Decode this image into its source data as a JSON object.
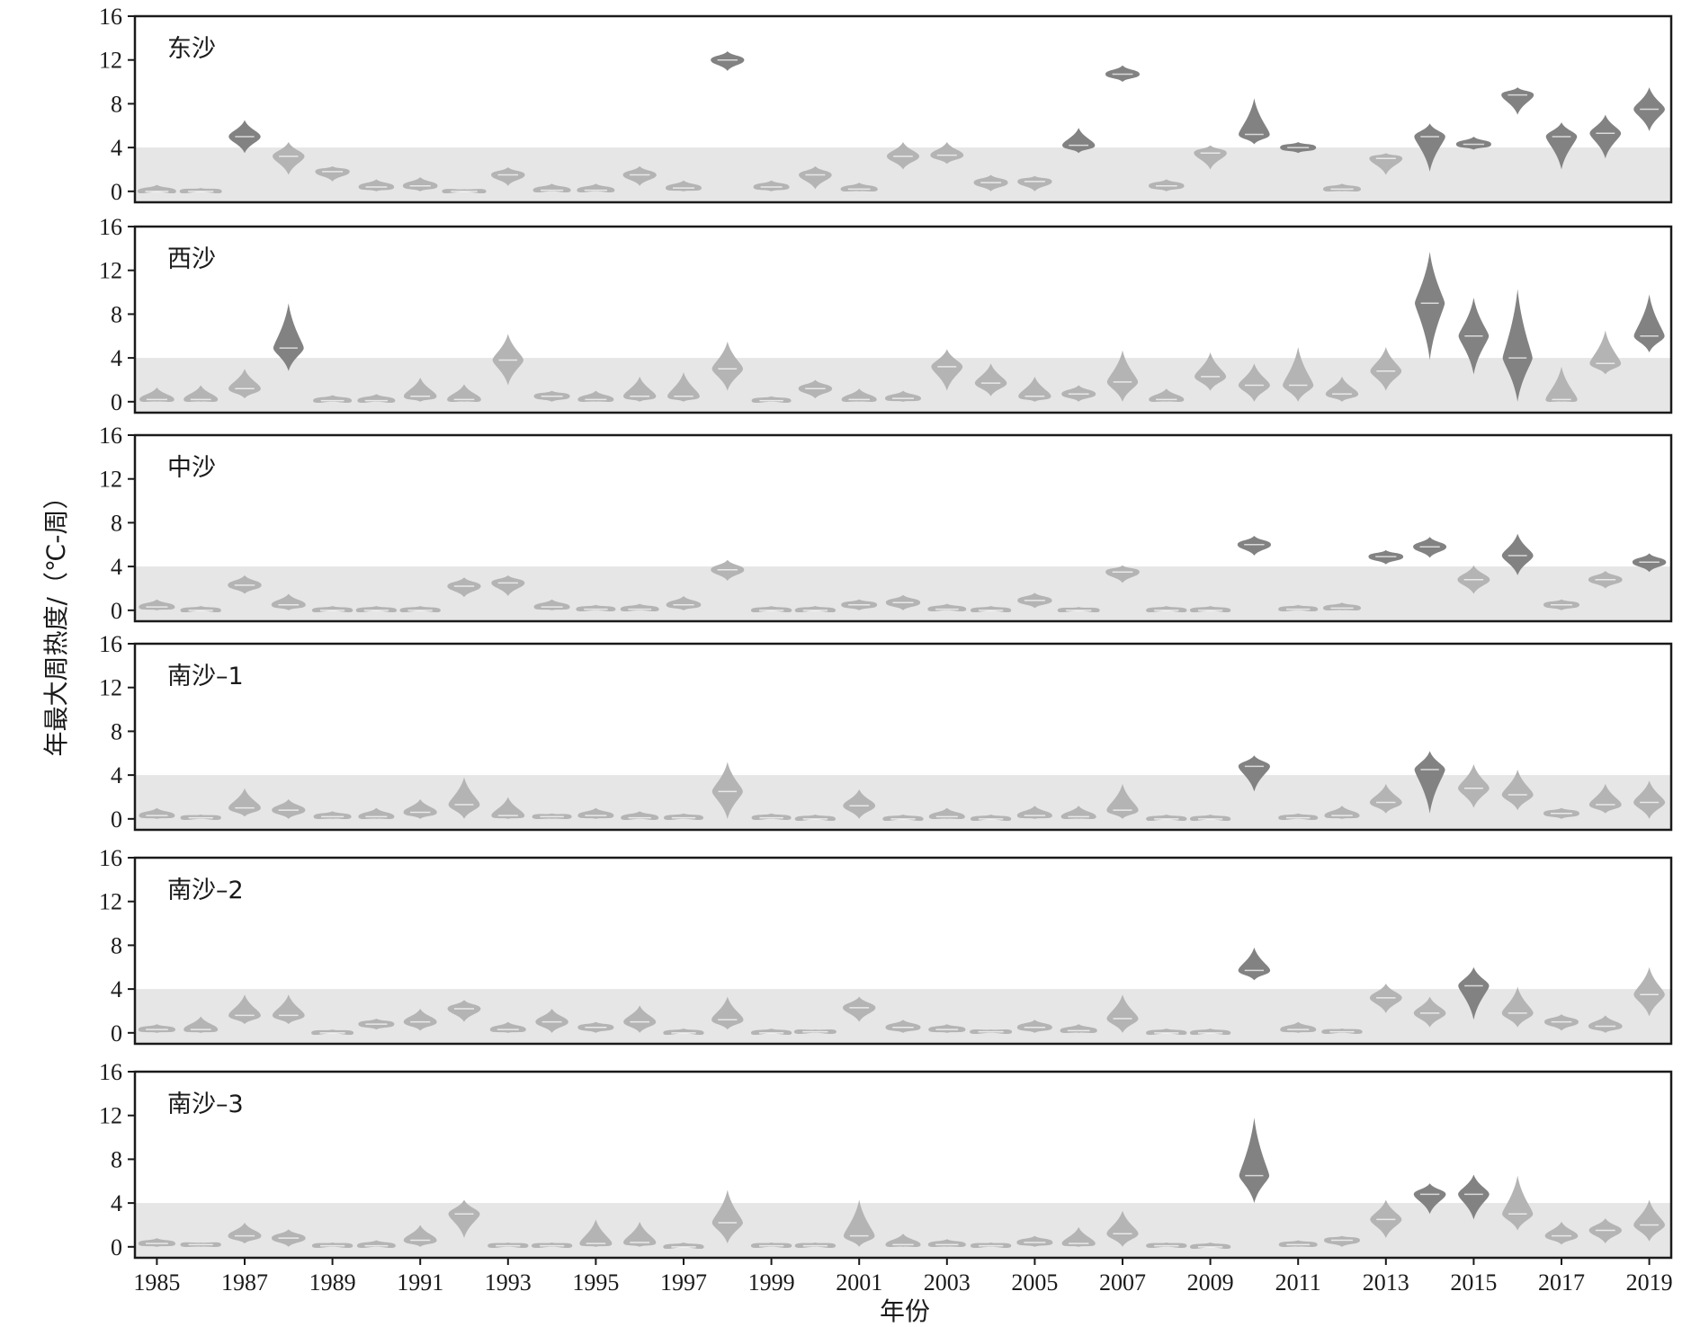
{
  "chart_data": {
    "type": "violin",
    "xlabel": "年份",
    "ylabel": "年最大周热度/（℃-周）",
    "x_tick_labels": [
      "1985",
      "1987",
      "1989",
      "1991",
      "1993",
      "1995",
      "1997",
      "1999",
      "2001",
      "2003",
      "2005",
      "2007",
      "2009",
      "2011",
      "2013",
      "2015",
      "2017",
      "2019"
    ],
    "y_ticks": [
      0,
      4,
      8,
      12,
      16
    ],
    "ylim": [
      -1,
      16
    ],
    "threshold_band": [
      -1,
      4
    ],
    "colors": {
      "above_threshold": "#828282",
      "below_threshold": "#b4b4b4",
      "band": "#e6e6e6",
      "frame": "#1a1a1a"
    },
    "years": [
      1985,
      1986,
      1987,
      1988,
      1989,
      1990,
      1991,
      1992,
      1993,
      1994,
      1995,
      1996,
      1997,
      1998,
      1999,
      2000,
      2001,
      2002,
      2003,
      2004,
      2005,
      2006,
      2007,
      2008,
      2009,
      2010,
      2011,
      2012,
      2013,
      2014,
      2015,
      2016,
      2017,
      2018,
      2019
    ],
    "panels": [
      {
        "name": "东沙",
        "medians": [
          0,
          0,
          5,
          3.2,
          1.8,
          0.4,
          0.5,
          0,
          1.5,
          0.1,
          0.1,
          1.5,
          0.3,
          12,
          0.4,
          1.5,
          0.2,
          3.2,
          3.3,
          0.8,
          0.9,
          4.2,
          10.7,
          0.5,
          3.5,
          5.2,
          4,
          0.2,
          3,
          5,
          4.3,
          8.8,
          5,
          5.3,
          7.5
        ],
        "mins": [
          0,
          0,
          3.5,
          1.5,
          0.9,
          0,
          0,
          0,
          0.5,
          0,
          0,
          0.5,
          0,
          11,
          0,
          0.2,
          0,
          2,
          2.5,
          0,
          0,
          3.5,
          10,
          0,
          2,
          4.3,
          3.5,
          0,
          1.5,
          1.8,
          3.8,
          7,
          2,
          3,
          5.5
        ],
        "maxs": [
          0.6,
          0.3,
          6.5,
          4.5,
          2.3,
          1.1,
          1.3,
          0.2,
          2.2,
          0.7,
          0.7,
          2.3,
          1,
          12.8,
          1,
          2.3,
          0.8,
          4.5,
          4.5,
          1.5,
          1.4,
          5.8,
          11.5,
          1.1,
          4.2,
          8.5,
          4.5,
          0.7,
          3.5,
          6.2,
          5,
          9.5,
          6.3,
          7,
          9.5
        ]
      },
      {
        "name": "西沙",
        "medians": [
          0.2,
          0.2,
          1.2,
          4.9,
          0.1,
          0.1,
          0.5,
          0.2,
          3.8,
          0.5,
          0.2,
          0.5,
          0.5,
          3,
          0.1,
          1.2,
          0.2,
          0.3,
          3.2,
          1.7,
          0.5,
          0.7,
          1.8,
          0.2,
          2.3,
          1.5,
          1.5,
          0.7,
          2.8,
          9,
          6,
          4,
          0.2,
          3.5,
          6
        ],
        "mins": [
          0,
          0,
          0.3,
          2.8,
          0,
          0,
          0,
          0,
          1.5,
          0,
          0,
          0,
          0,
          1,
          0,
          0.3,
          0,
          0,
          1,
          0.5,
          0,
          0,
          0,
          0,
          1,
          0,
          0,
          0,
          1,
          3.8,
          2.5,
          0,
          0,
          2.5,
          4.5
        ],
        "maxs": [
          1.3,
          1.5,
          3,
          9,
          0.6,
          0.7,
          2.2,
          1.6,
          6.2,
          1,
          1,
          2.3,
          2.7,
          5.5,
          0.5,
          2,
          1.2,
          1,
          4.8,
          3.5,
          2.3,
          1.5,
          4.7,
          1.2,
          4.5,
          3.5,
          5,
          2.3,
          5,
          13.7,
          9.5,
          10.3,
          3.2,
          6.5,
          9.8
        ]
      },
      {
        "name": "中沙",
        "medians": [
          0.3,
          0,
          2.3,
          0.5,
          0,
          0,
          0,
          2.2,
          2.5,
          0.3,
          0.1,
          0.1,
          0.5,
          3.7,
          0,
          0,
          0.5,
          0.7,
          0.1,
          0,
          0.9,
          0,
          3.5,
          0,
          0,
          6,
          0.1,
          0.2,
          4.9,
          5.8,
          2.8,
          5,
          0.5,
          2.8,
          4.4
        ],
        "mins": [
          0,
          0,
          1.5,
          0,
          0,
          0,
          0,
          1.2,
          1.3,
          0,
          0,
          0,
          0,
          2.7,
          0,
          0,
          0,
          0,
          0,
          0,
          0.2,
          0,
          2.5,
          0,
          0,
          5,
          0,
          0,
          4.2,
          4.8,
          1.5,
          3.2,
          0,
          2,
          3.5
        ],
        "maxs": [
          1,
          0.4,
          3.2,
          1.5,
          0.4,
          0.4,
          0.4,
          3,
          3.2,
          1,
          0.5,
          0.6,
          1.3,
          4.6,
          0.4,
          0.4,
          1,
          1.4,
          0.6,
          0.4,
          1.6,
          0.3,
          4.1,
          0.4,
          0.4,
          6.8,
          0.5,
          0.7,
          5.5,
          6.7,
          4.1,
          7,
          1,
          3.6,
          5.2
        ]
      },
      {
        "name": "南沙–1",
        "medians": [
          0.3,
          0.1,
          1,
          0.8,
          0.2,
          0.2,
          0.6,
          1.3,
          0.3,
          0.2,
          0.3,
          0.1,
          0.1,
          2.5,
          0.1,
          0,
          1.2,
          0,
          0.2,
          0,
          0.3,
          0.2,
          0.8,
          0,
          0,
          4.8,
          0.1,
          0.3,
          1.5,
          4.5,
          2.8,
          2.2,
          0.5,
          1.3,
          1.5
        ],
        "mins": [
          0,
          0,
          0.2,
          0,
          0,
          0,
          0,
          0,
          0,
          0,
          0,
          0,
          0,
          0,
          0,
          0,
          0,
          0,
          0,
          0,
          0,
          0,
          0,
          0,
          0,
          2.5,
          0,
          0,
          0.5,
          0.5,
          1,
          0.8,
          0,
          0.5,
          0
        ],
        "maxs": [
          1,
          0.4,
          2.8,
          1.8,
          0.7,
          1,
          1.8,
          3.8,
          2,
          0.5,
          1,
          0.7,
          0.5,
          5.2,
          0.5,
          0.4,
          2.7,
          0.4,
          1,
          0.4,
          1.2,
          1.2,
          3.2,
          0.4,
          0.4,
          5.8,
          0.5,
          1.2,
          3.2,
          6.2,
          5,
          4.5,
          1,
          3.2,
          3.5
        ]
      },
      {
        "name": "南沙–2",
        "medians": [
          0.3,
          0.3,
          1.6,
          1.6,
          0,
          0.8,
          1,
          2.2,
          0.3,
          1,
          0.5,
          1,
          0,
          1.2,
          0,
          0.1,
          2.3,
          0.5,
          0.3,
          0.1,
          0.5,
          0.2,
          1.3,
          0,
          0,
          5.7,
          0.3,
          0.1,
          3.2,
          1.8,
          4.3,
          1.8,
          1,
          0.6,
          3.5
        ],
        "mins": [
          0,
          0,
          0.8,
          0.8,
          0,
          0.3,
          0.2,
          1,
          0,
          0,
          0,
          0,
          0,
          0.3,
          0,
          0,
          1,
          0,
          0,
          0,
          0,
          0,
          0,
          0,
          0,
          4.8,
          0,
          0,
          1.8,
          0.5,
          1.2,
          0.5,
          0.2,
          0,
          1.5
        ],
        "maxs": [
          0.8,
          1.5,
          3.5,
          3.5,
          0.3,
          1.3,
          2.2,
          3,
          1,
          2.2,
          1,
          2.5,
          0.4,
          3.3,
          0.4,
          0.3,
          3.3,
          1.2,
          0.8,
          0.3,
          1.2,
          0.8,
          3.5,
          0.4,
          0.4,
          7.8,
          1,
          0.4,
          4.5,
          3.3,
          6,
          4.2,
          1.7,
          1.6,
          6
        ]
      },
      {
        "name": "南沙–3",
        "medians": [
          0.3,
          0.2,
          1,
          0.8,
          0.1,
          0.1,
          0.6,
          3,
          0.1,
          0.1,
          0.3,
          0.4,
          0,
          2.2,
          0.1,
          0.1,
          1,
          0.2,
          0.2,
          0.1,
          0.4,
          0.3,
          1.2,
          0.1,
          0,
          6.5,
          0.2,
          0.6,
          2.5,
          4.8,
          4.8,
          3,
          1,
          1.5,
          2
        ],
        "mins": [
          0,
          0,
          0.3,
          0,
          0,
          0,
          0,
          0.8,
          0,
          0,
          0,
          0,
          0,
          0.3,
          0,
          0,
          0,
          0,
          0,
          0,
          0,
          0,
          0,
          0,
          0,
          4,
          0,
          0,
          0.8,
          3,
          2.5,
          1.5,
          0.2,
          0.3,
          0.5
        ],
        "maxs": [
          0.8,
          0.4,
          2.2,
          1.6,
          0.4,
          0.6,
          2,
          4.3,
          0.4,
          0.4,
          2.5,
          2.3,
          0.4,
          5.2,
          0.4,
          0.4,
          4.3,
          1.2,
          0.7,
          0.4,
          1,
          1.8,
          3.3,
          0.4,
          0.4,
          11.8,
          0.6,
          1,
          4.3,
          5.8,
          6.6,
          6.5,
          2.3,
          2.6,
          4.3
        ]
      }
    ]
  }
}
